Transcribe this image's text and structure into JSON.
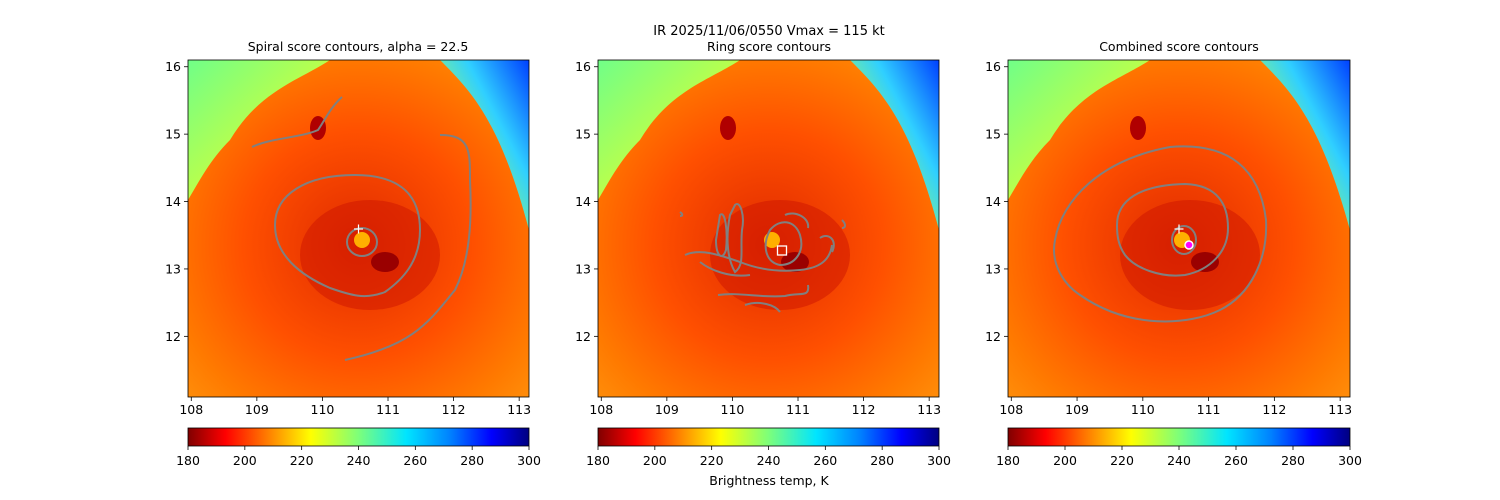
{
  "figure": {
    "suptitle_line1": "IR  2025/11/06/0550    Vmax = 115 kt",
    "colorbar_label": "Brightness temp, K"
  },
  "chart_data": [
    {
      "type": "heatmap",
      "title": "Spiral score contours, alpha = 22.5",
      "xlim": [
        107.95,
        113.15
      ],
      "ylim": [
        11.1,
        16.1
      ],
      "x_ticks": [
        "108",
        "109",
        "110",
        "111",
        "112",
        "113"
      ],
      "y_ticks": [
        "12",
        "13",
        "14",
        "15",
        "16"
      ],
      "marker": {
        "kind": "plus",
        "lon": 110.5,
        "lat": 13.6
      }
    },
    {
      "type": "heatmap",
      "title": "Ring score contours",
      "xlim": [
        107.95,
        113.15
      ],
      "ylim": [
        11.1,
        16.1
      ],
      "x_ticks": [
        "108",
        "109",
        "110",
        "111",
        "112",
        "113"
      ],
      "y_ticks": [
        "12",
        "13",
        "14",
        "15",
        "16"
      ],
      "marker": {
        "kind": "square",
        "lon": 110.7,
        "lat": 13.27
      }
    },
    {
      "type": "heatmap",
      "title": "Combined score contours",
      "xlim": [
        107.95,
        113.15
      ],
      "ylim": [
        11.1,
        16.1
      ],
      "x_ticks": [
        "108",
        "109",
        "110",
        "111",
        "112",
        "113"
      ],
      "y_ticks": [
        "12",
        "13",
        "14",
        "15",
        "16"
      ],
      "marker": {
        "kind": "plus",
        "lon": 110.5,
        "lat": 13.6
      },
      "marker2": {
        "kind": "circle",
        "lon": 110.68,
        "lat": 13.35
      }
    }
  ],
  "colorbar": {
    "range": [
      180,
      300
    ],
    "ticks": [
      "180",
      "200",
      "220",
      "240",
      "260",
      "280",
      "300"
    ],
    "colormap": "jet_r"
  },
  "colors": {
    "contour": "#808080",
    "storm_core": "#e63c00",
    "background_cloud": "#ff6a00"
  }
}
